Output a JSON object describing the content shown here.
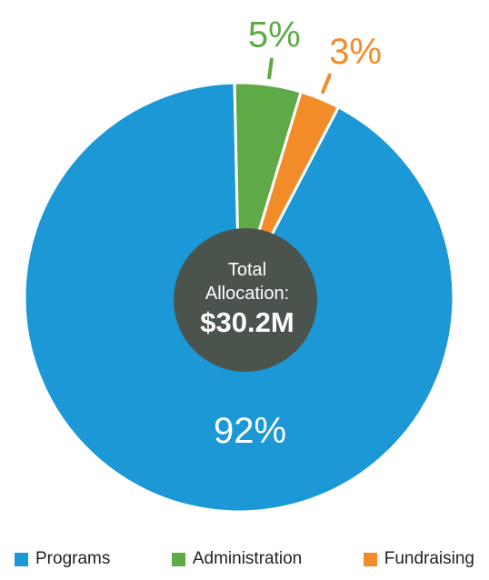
{
  "chart_data": {
    "type": "pie",
    "center_label": {
      "line1": "Total",
      "line2": "Allocation:",
      "value": "$30.2M"
    },
    "slices": [
      {
        "name": "Programs",
        "percent": 92,
        "label": "92%",
        "color": "#1b98d5"
      },
      {
        "name": "Administration",
        "percent": 5,
        "label": "5%",
        "color": "#5eaa46"
      },
      {
        "name": "Fundraising",
        "percent": 3,
        "label": "3%",
        "color": "#f28c28"
      }
    ],
    "legend": [
      {
        "name": "Programs",
        "color": "#1b98d5"
      },
      {
        "name": "Administration",
        "color": "#5eaa46"
      },
      {
        "name": "Fundraising",
        "color": "#f28c28"
      }
    ],
    "legend_position": "bottom",
    "center_color": "#4a544c"
  }
}
